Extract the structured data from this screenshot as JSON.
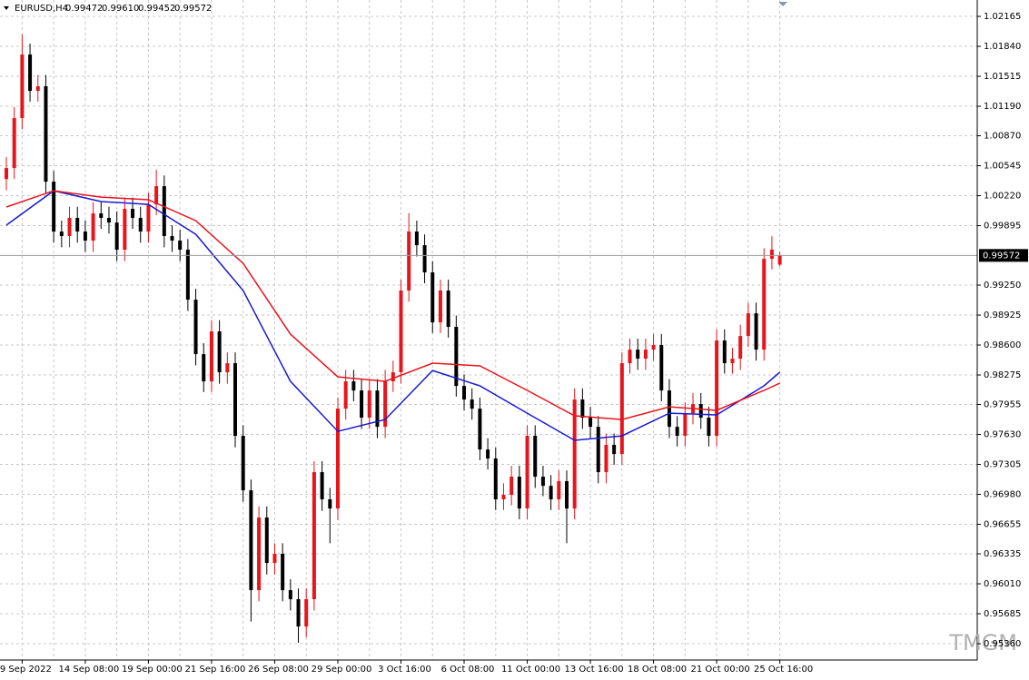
{
  "chart_data": {
    "type": "candlestick",
    "symbol": "EURUSD,H4",
    "ohlc_labels": [
      "0.99472",
      "0.99610",
      "0.99452",
      "0.99572"
    ],
    "watermark": "TMGM",
    "categories": [
      null,
      null,
      "9 Sep 2022",
      null,
      null,
      null,
      null,
      null,
      null,
      null,
      "14 Sep 08:00",
      null,
      null,
      null,
      null,
      null,
      null,
      null,
      "19 Sep 00:00",
      null,
      null,
      null,
      null,
      null,
      null,
      null,
      "21 Sep 16:00",
      null,
      null,
      null,
      null,
      null,
      null,
      null,
      "26 Sep 08:00",
      null,
      null,
      null,
      null,
      null,
      null,
      null,
      "29 Sep 00:00",
      null,
      null,
      null,
      null,
      null,
      null,
      null,
      "3 Oct 16:00",
      null,
      null,
      null,
      null,
      null,
      null,
      null,
      "6 Oct 08:00",
      null,
      null,
      null,
      null,
      null,
      null,
      null,
      "11 Oct 00:00",
      null,
      null,
      null,
      null,
      null,
      null,
      null,
      "13 Oct 16:00",
      null,
      null,
      null,
      null,
      null,
      null,
      null,
      "18 Oct 08:00",
      null,
      null,
      null,
      null,
      null,
      null,
      null,
      "21 Oct 00:00",
      null,
      null,
      null,
      null,
      null,
      null,
      null,
      "25 Oct 16:00"
    ],
    "open": [
      1.004,
      1.0052,
      1.01062,
      1.01751,
      1.01357,
      1.01407,
      1.00372,
      0.99831,
      0.99782,
      0.99979,
      0.99831,
      0.99733,
      1.00028,
      0.99979,
      0.99929,
      0.99634,
      1.00077,
      0.99979,
      0.99831,
      1.00126,
      1.00323,
      0.99782,
      0.99733,
      0.99634,
      0.99092,
      0.98501,
      0.98206,
      0.98748,
      0.98304,
      0.98403,
      0.97615,
      0.97024,
      0.95941,
      0.96729,
      0.96236,
      0.96335,
      0.95941,
      0.95843,
      0.95547,
      0.95843,
      0.97221,
      0.96926,
      0.96827,
      0.9791,
      0.98206,
      0.98107,
      0.97812,
      0.98107,
      0.97713,
      0.98206,
      0.98304,
      0.99191,
      0.99831,
      0.99683,
      0.99388,
      0.98846,
      0.99191,
      0.98797,
      0.98156,
      0.98009,
      0.9791,
      0.97467,
      0.97369,
      0.96926,
      0.96975,
      0.97172,
      0.96827,
      0.97615,
      0.97172,
      0.97073,
      0.96926,
      0.97123,
      0.96827,
      0.98009,
      0.97812,
      0.97713,
      0.97221,
      0.97517,
      0.97418,
      0.98403,
      0.9855,
      0.98452,
      0.9855,
      0.986,
      0.98107,
      0.97713,
      0.97615,
      0.97861,
      0.9796,
      0.97812,
      0.97615,
      0.98649,
      0.98403,
      0.98452,
      0.98698,
      0.98944,
      0.9855,
      0.99535,
      0.99472
    ],
    "high": [
      1.0064,
      1.0118,
      1.0197,
      1.0187,
      1.0153,
      1.0153,
      1.0049,
      0.9995,
      1.001,
      1.001,
      0.9995,
      1.0015,
      1.0015,
      1.001,
      1.0005,
      1.002,
      1.002,
      1.001,
      1.0025,
      1.005,
      1.0044,
      0.999,
      0.9985,
      0.9975,
      0.9921,
      0.9862,
      0.9887,
      0.9887,
      0.9852,
      0.9852,
      0.9773,
      0.9714,
      0.9685,
      0.9685,
      0.9645,
      0.9645,
      0.9606,
      0.9596,
      0.9596,
      0.9734,
      0.9734,
      0.9705,
      0.9803,
      0.9833,
      0.9833,
      0.9823,
      0.9823,
      0.9823,
      0.9833,
      0.9843,
      0.9931,
      1.0003,
      0.9995,
      0.998,
      0.9951,
      0.9931,
      0.9931,
      0.9892,
      0.9828,
      0.9813,
      0.9803,
      0.9759,
      0.9749,
      0.971,
      0.9729,
      0.9729,
      0.9773,
      0.9773,
      0.9729,
      0.9719,
      0.9724,
      0.9724,
      0.9813,
      0.9813,
      0.9793,
      0.9783,
      0.9764,
      0.9764,
      0.9852,
      0.9867,
      0.9867,
      0.9867,
      0.9872,
      0.9872,
      0.9823,
      0.9783,
      0.9798,
      0.9808,
      0.9808,
      0.9793,
      0.9877,
      0.9877,
      0.9857,
      0.9882,
      0.9906,
      0.9906,
      0.9965,
      0.9978,
      0.9961
    ],
    "low": [
      1.0028,
      1.004,
      1.0094,
      1.0124,
      1.0124,
      1.0025,
      0.9971,
      0.9966,
      0.9966,
      0.9971,
      0.9961,
      0.9961,
      0.9986,
      0.9981,
      0.9951,
      0.9951,
      0.9986,
      0.9971,
      0.9971,
      1.0001,
      0.9966,
      0.9961,
      0.9951,
      0.9897,
      0.9838,
      0.9809,
      0.9809,
      0.9818,
      0.9818,
      0.9749,
      0.969,
      0.956,
      0.9582,
      0.9611,
      0.9611,
      0.9582,
      0.9572,
      0.9537,
      0.9543,
      0.9572,
      0.968,
      0.9645,
      0.967,
      0.9779,
      0.9799,
      0.9769,
      0.9769,
      0.9759,
      0.9759,
      0.9809,
      0.9818,
      0.9907,
      0.9956,
      0.9927,
      0.9873,
      0.9873,
      0.9868,
      0.9804,
      0.9789,
      0.9779,
      0.9735,
      0.9725,
      0.9681,
      0.9681,
      0.9686,
      0.9671,
      0.9671,
      0.9705,
      0.9696,
      0.9681,
      0.9681,
      0.9645,
      0.9671,
      0.9769,
      0.9759,
      0.971,
      0.971,
      0.973,
      0.973,
      0.9829,
      0.9833,
      0.9833,
      0.9843,
      0.9799,
      0.9759,
      0.975,
      0.975,
      0.9774,
      0.9769,
      0.975,
      0.975,
      0.9829,
      0.9829,
      0.9833,
      0.9858,
      0.9843,
      0.9843,
      0.9942,
      0.99452
    ],
    "close": [
      1.0052,
      1.01062,
      1.01751,
      1.01357,
      1.01407,
      1.00372,
      0.99831,
      0.99782,
      0.99979,
      0.99831,
      0.99733,
      1.00028,
      0.99979,
      0.99929,
      0.99634,
      1.00077,
      0.99979,
      0.99831,
      1.00126,
      1.00323,
      0.99782,
      0.99733,
      0.99634,
      0.99092,
      0.98501,
      0.98206,
      0.98748,
      0.98304,
      0.98403,
      0.97615,
      0.97024,
      0.95941,
      0.96729,
      0.96236,
      0.96335,
      0.95941,
      0.95843,
      0.95547,
      0.95843,
      0.97221,
      0.96926,
      0.96827,
      0.9791,
      0.98206,
      0.98107,
      0.97812,
      0.98107,
      0.97713,
      0.98206,
      0.98304,
      0.99191,
      0.99831,
      0.99683,
      0.99388,
      0.98846,
      0.99191,
      0.98797,
      0.98156,
      0.98009,
      0.9791,
      0.97467,
      0.97369,
      0.96926,
      0.96975,
      0.97172,
      0.96827,
      0.97615,
      0.97172,
      0.97073,
      0.96926,
      0.97123,
      0.96827,
      0.98009,
      0.97812,
      0.97713,
      0.97221,
      0.97517,
      0.97418,
      0.98403,
      0.9855,
      0.98452,
      0.9855,
      0.986,
      0.98107,
      0.97713,
      0.97615,
      0.97861,
      0.9796,
      0.97812,
      0.97615,
      0.98649,
      0.98403,
      0.98452,
      0.98698,
      0.98944,
      0.9855,
      0.99535,
      0.99634,
      0.99572
    ],
    "up_color": "#e8141c",
    "down_color": "#000000",
    "series": [
      {
        "color": "#1a1ad0",
        "x": [
          0,
          6,
          12,
          18,
          24,
          30,
          36,
          42,
          48,
          54,
          60,
          66,
          72,
          78,
          84,
          90,
          96,
          98
        ],
        "values": [
          0.999,
          1.00274,
          1.00156,
          1.00126,
          0.99801,
          0.99191,
          0.98206,
          0.97664,
          0.97792,
          0.98324,
          0.98157,
          0.97861,
          0.97566,
          0.97615,
          0.97861,
          0.97842,
          0.98157,
          0.98305
        ]
      },
      {
        "color": "#e8141c",
        "x": [
          0,
          6,
          12,
          18,
          24,
          30,
          36,
          42,
          48,
          54,
          60,
          66,
          72,
          78,
          84,
          90,
          96,
          98
        ],
        "values": [
          1.00097,
          1.00274,
          1.00205,
          1.00176,
          0.99949,
          0.99486,
          0.98718,
          0.98255,
          0.98206,
          0.98403,
          0.98374,
          0.98108,
          0.97832,
          0.97792,
          0.9793,
          0.97891,
          0.98108,
          0.98186
        ]
      }
    ],
    "ylim": [
      0.95183,
      1.02323
    ],
    "yticks": [
      1.02165,
      {
        "value": 1.0184,
        "label": "1.01840"
      },
      1.01515,
      {
        "value": 1.0119,
        "label": "1.01190"
      },
      {
        "value": 1.0087,
        "label": "1.00870"
      },
      1.00545,
      {
        "value": 1.0022,
        "label": "1.00220"
      },
      0.99895,
      {
        "value": 0.9925,
        "label": "0.99250"
      },
      0.98925,
      {
        "value": 0.986,
        "label": "0.98600"
      },
      0.98275,
      0.97955,
      {
        "value": 0.9763,
        "label": "0.97630"
      },
      0.97305,
      {
        "value": 0.9698,
        "label": "0.96980"
      },
      0.96655,
      0.96335,
      {
        "value": 0.9601,
        "label": "0.96010"
      },
      0.95685,
      {
        "value": 0.9536,
        "label": "0.95360"
      }
    ],
    "grid": true
  }
}
